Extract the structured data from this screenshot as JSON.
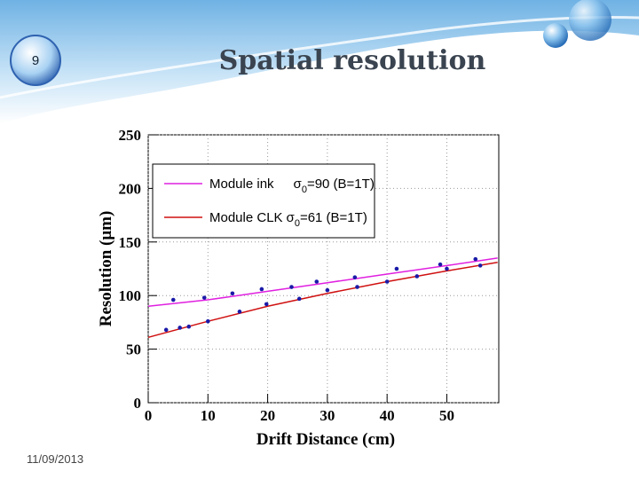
{
  "slide_number": "9",
  "date": "11/09/2013",
  "chart_data": {
    "type": "line",
    "title": "Spatial resolution",
    "xlabel": "Drift Distance (cm)",
    "ylabel": "Resolution (μm)",
    "xlim": [
      0,
      58.7
    ],
    "ylim": [
      0,
      250
    ],
    "xticks": [
      0,
      10,
      20,
      30,
      40,
      50
    ],
    "yticks": [
      0,
      50,
      100,
      150,
      200,
      250
    ],
    "grid": true,
    "legend": "upper left",
    "point_color": "#1a1aa8",
    "series": [
      {
        "name": "Module ink",
        "param": {
          "symbol": "σ",
          "subscript": "0",
          "text": "=90 (B=1T)"
        },
        "color": "#e020e0",
        "x": [
          0,
          10,
          20,
          30,
          40,
          50,
          58.5
        ],
        "values": [
          90,
          96,
          104,
          112,
          120,
          128,
          135
        ],
        "points_x": [
          4.2,
          9.4,
          14.1,
          19,
          24,
          28.2,
          34.6,
          41.6,
          48.9,
          54.8
        ],
        "points": [
          96,
          98,
          102,
          106,
          108,
          113,
          117,
          125,
          129,
          134
        ]
      },
      {
        "name": "Module CLK",
        "param": {
          "symbol": "σ",
          "subscript": "0",
          "text": "=61 (B=1T)"
        },
        "color": "#d01010",
        "x": [
          0,
          10,
          20,
          30,
          40,
          50,
          58.5
        ],
        "values": [
          61,
          76,
          90,
          102,
          113,
          123,
          131
        ],
        "points_x": [
          3,
          5.3,
          6.8,
          10,
          15.3,
          19.8,
          25.3,
          30,
          35,
          40,
          45,
          50,
          55.6
        ],
        "points": [
          68,
          70,
          71,
          76,
          85,
          92,
          97,
          105,
          108,
          113,
          118,
          125,
          128
        ]
      }
    ]
  }
}
